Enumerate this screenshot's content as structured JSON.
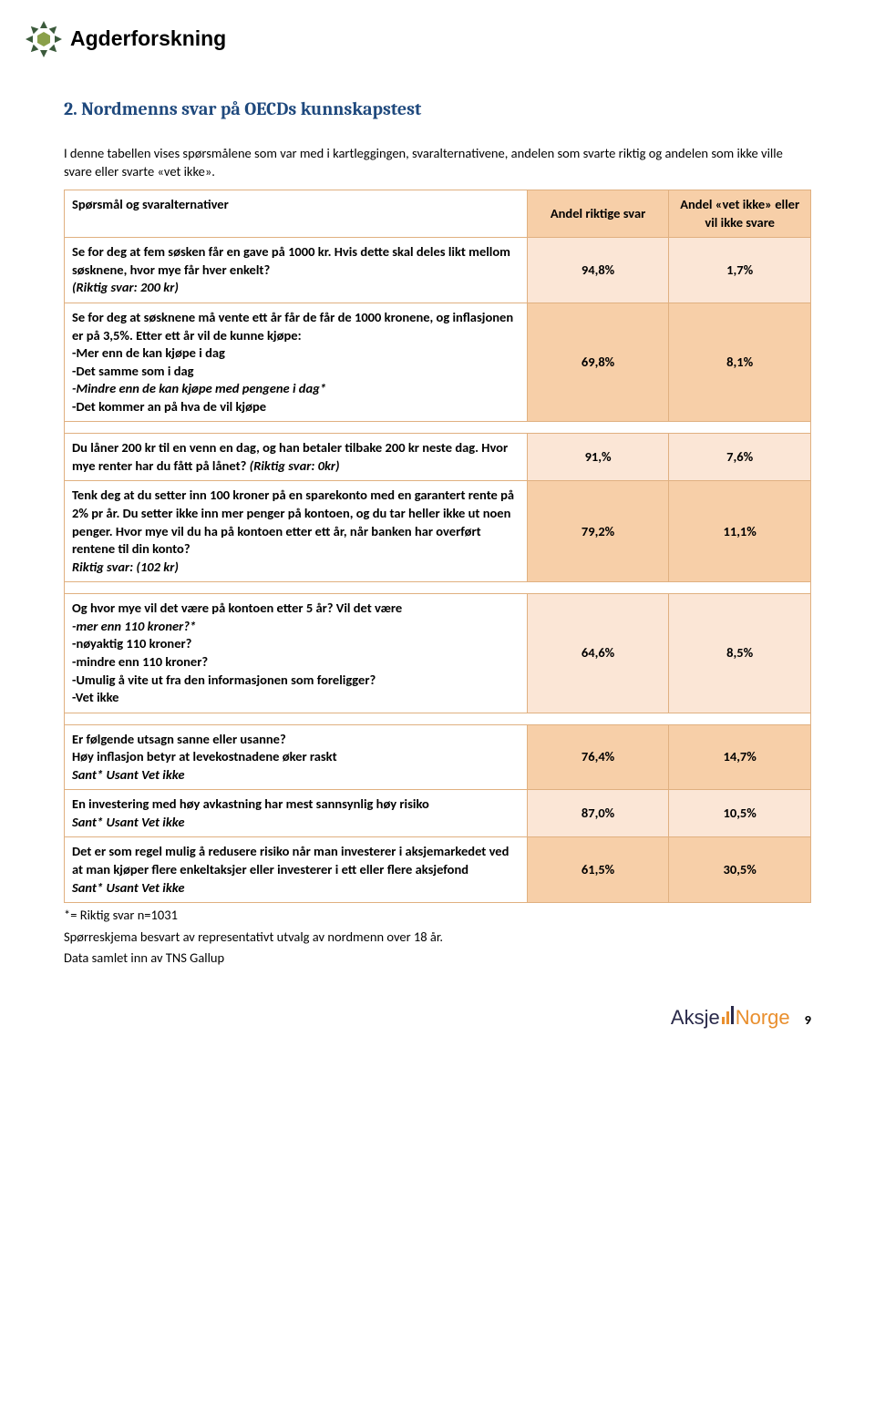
{
  "header": {
    "brand": "Agderforskning"
  },
  "title": "2. Nordmenns svar på OECDs kunnskapstest",
  "intro": "I denne tabellen vises spørsmålene som var med i kartleggingen, svaralternativene, andelen som svarte riktig og andelen som ikke ville svare eller svarte «vet ikke».",
  "table": {
    "head": {
      "q": "Spørsmål og svaralternativer",
      "c1": "Andel riktige svar",
      "c2": "Andel «vet ikke» eller vil ikke svare"
    },
    "rows": [
      {
        "q": "Se for deg at fem søsken får en gave på 1000 kr. Hvis dette skal deles likt mellom søsknene, hvor mye får hver enkelt?",
        "note": "(Riktig svar: 200 kr)",
        "v1": "94,8%",
        "v2": "1,7%",
        "shade": "shade1"
      },
      {
        "q": "Se for deg at søsknene må vente ett år får de får de 1000 kronene, og inflasjonen er på 3,5%. Etter ett år vil de kunne kjøpe:",
        "opts": [
          "-Mer enn de kan kjøpe i dag",
          "-Det samme som i dag",
          "-Mindre enn de kan kjøpe med pengene i dag*",
          "-Det kommer an på hva de vil kjøpe"
        ],
        "v1": "69,8%",
        "v2": "8,1%",
        "shade": "shade2"
      },
      {
        "q": "Du låner 200 kr til en venn en dag, og han betaler tilbake 200 kr neste dag. Hvor mye renter har du fått på lånet?",
        "note_inline": "(Riktig svar: 0kr)",
        "v1": "91,%",
        "v2": "7,6%",
        "shade": "shade1"
      },
      {
        "q": "Tenk deg at du setter inn 100 kroner på en sparekonto med en garantert rente på 2% pr år. Du setter ikke inn mer penger på kontoen, og du tar heller ikke ut noen penger. Hvor mye vil du ha på kontoen etter ett år, når banken har overført rentene til din konto?",
        "note": "Riktig svar: (102 kr)",
        "v1": "79,2%",
        "v2": "11,1%",
        "shade": "shade2"
      },
      {
        "q": "Og hvor mye vil det være på kontoen etter 5 år? Vil det være",
        "opts": [
          "-mer enn 110 kroner?*",
          "-nøyaktig 110 kroner?",
          "-mindre enn 110 kroner?",
          "-Umulig å vite ut fra den informasjonen som foreligger?",
          "-Vet ikke"
        ],
        "opts_italic_count": 1,
        "v1": "64,6%",
        "v2": "8,5%",
        "shade": "shade1"
      },
      {
        "q": "Er følgende utsagn sanne eller usanne?",
        "q2": "Høy inflasjon betyr at levekostnadene øker raskt",
        "ans": "Sant*   Usant  Vet ikke",
        "v1": "76,4%",
        "v2": "14,7%",
        "shade": "shade2"
      },
      {
        "q": "En investering med høy avkastning har mest sannsynlig høy risiko",
        "ans": "Sant*   Usant  Vet ikke",
        "v1": "87,0%",
        "v2": "10,5%",
        "shade": "shade1"
      },
      {
        "q": "Det er som regel mulig å redusere risiko når man investerer i aksjemarkedet ved at man kjøper flere enkeltaksjer eller investerer i ett eller flere aksjefond",
        "ans": "Sant*   Usant  Vet ikke",
        "v1": "61,5%",
        "v2": "30,5%",
        "shade": "shade2"
      }
    ]
  },
  "notes": [
    "*= Riktig svar   n=1031",
    "Spørreskjema besvart av representativt utvalg av nordmenn over 18 år.",
    "Data samlet inn av TNS Gallup"
  ],
  "footer": {
    "logo_a": "Aksje",
    "logo_b": "Norge",
    "page_num": "9",
    "logo_dark": "#2a2a4a",
    "logo_orange": "#e98f2e"
  },
  "colors": {
    "title": "#1f497d",
    "border": "#e0b080",
    "shade_light": "#fbe6d6",
    "shade_dark": "#f7cfa8"
  }
}
